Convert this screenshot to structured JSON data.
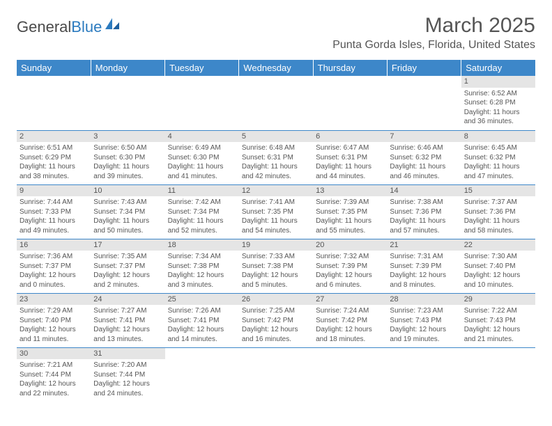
{
  "logo": {
    "text1": "General",
    "text2": "Blue"
  },
  "title": "March 2025",
  "location": "Punta Gorda Isles, Florida, United States",
  "colors": {
    "header_bg": "#3d87c9",
    "header_text": "#ffffff",
    "daynum_bg": "#e5e5e5",
    "text": "#555555",
    "row_border": "#3d87c9"
  },
  "fonts": {
    "title_size": 30,
    "location_size": 16,
    "dayhead_size": 13,
    "cell_size": 10
  },
  "day_headers": [
    "Sunday",
    "Monday",
    "Tuesday",
    "Wednesday",
    "Thursday",
    "Friday",
    "Saturday"
  ],
  "weeks": [
    [
      {
        "day": "",
        "sunrise": "",
        "sunset": "",
        "daylight1": "",
        "daylight2": ""
      },
      {
        "day": "",
        "sunrise": "",
        "sunset": "",
        "daylight1": "",
        "daylight2": ""
      },
      {
        "day": "",
        "sunrise": "",
        "sunset": "",
        "daylight1": "",
        "daylight2": ""
      },
      {
        "day": "",
        "sunrise": "",
        "sunset": "",
        "daylight1": "",
        "daylight2": ""
      },
      {
        "day": "",
        "sunrise": "",
        "sunset": "",
        "daylight1": "",
        "daylight2": ""
      },
      {
        "day": "",
        "sunrise": "",
        "sunset": "",
        "daylight1": "",
        "daylight2": ""
      },
      {
        "day": "1",
        "sunrise": "Sunrise: 6:52 AM",
        "sunset": "Sunset: 6:28 PM",
        "daylight1": "Daylight: 11 hours",
        "daylight2": "and 36 minutes."
      }
    ],
    [
      {
        "day": "2",
        "sunrise": "Sunrise: 6:51 AM",
        "sunset": "Sunset: 6:29 PM",
        "daylight1": "Daylight: 11 hours",
        "daylight2": "and 38 minutes."
      },
      {
        "day": "3",
        "sunrise": "Sunrise: 6:50 AM",
        "sunset": "Sunset: 6:30 PM",
        "daylight1": "Daylight: 11 hours",
        "daylight2": "and 39 minutes."
      },
      {
        "day": "4",
        "sunrise": "Sunrise: 6:49 AM",
        "sunset": "Sunset: 6:30 PM",
        "daylight1": "Daylight: 11 hours",
        "daylight2": "and 41 minutes."
      },
      {
        "day": "5",
        "sunrise": "Sunrise: 6:48 AM",
        "sunset": "Sunset: 6:31 PM",
        "daylight1": "Daylight: 11 hours",
        "daylight2": "and 42 minutes."
      },
      {
        "day": "6",
        "sunrise": "Sunrise: 6:47 AM",
        "sunset": "Sunset: 6:31 PM",
        "daylight1": "Daylight: 11 hours",
        "daylight2": "and 44 minutes."
      },
      {
        "day": "7",
        "sunrise": "Sunrise: 6:46 AM",
        "sunset": "Sunset: 6:32 PM",
        "daylight1": "Daylight: 11 hours",
        "daylight2": "and 46 minutes."
      },
      {
        "day": "8",
        "sunrise": "Sunrise: 6:45 AM",
        "sunset": "Sunset: 6:32 PM",
        "daylight1": "Daylight: 11 hours",
        "daylight2": "and 47 minutes."
      }
    ],
    [
      {
        "day": "9",
        "sunrise": "Sunrise: 7:44 AM",
        "sunset": "Sunset: 7:33 PM",
        "daylight1": "Daylight: 11 hours",
        "daylight2": "and 49 minutes."
      },
      {
        "day": "10",
        "sunrise": "Sunrise: 7:43 AM",
        "sunset": "Sunset: 7:34 PM",
        "daylight1": "Daylight: 11 hours",
        "daylight2": "and 50 minutes."
      },
      {
        "day": "11",
        "sunrise": "Sunrise: 7:42 AM",
        "sunset": "Sunset: 7:34 PM",
        "daylight1": "Daylight: 11 hours",
        "daylight2": "and 52 minutes."
      },
      {
        "day": "12",
        "sunrise": "Sunrise: 7:41 AM",
        "sunset": "Sunset: 7:35 PM",
        "daylight1": "Daylight: 11 hours",
        "daylight2": "and 54 minutes."
      },
      {
        "day": "13",
        "sunrise": "Sunrise: 7:39 AM",
        "sunset": "Sunset: 7:35 PM",
        "daylight1": "Daylight: 11 hours",
        "daylight2": "and 55 minutes."
      },
      {
        "day": "14",
        "sunrise": "Sunrise: 7:38 AM",
        "sunset": "Sunset: 7:36 PM",
        "daylight1": "Daylight: 11 hours",
        "daylight2": "and 57 minutes."
      },
      {
        "day": "15",
        "sunrise": "Sunrise: 7:37 AM",
        "sunset": "Sunset: 7:36 PM",
        "daylight1": "Daylight: 11 hours",
        "daylight2": "and 58 minutes."
      }
    ],
    [
      {
        "day": "16",
        "sunrise": "Sunrise: 7:36 AM",
        "sunset": "Sunset: 7:37 PM",
        "daylight1": "Daylight: 12 hours",
        "daylight2": "and 0 minutes."
      },
      {
        "day": "17",
        "sunrise": "Sunrise: 7:35 AM",
        "sunset": "Sunset: 7:37 PM",
        "daylight1": "Daylight: 12 hours",
        "daylight2": "and 2 minutes."
      },
      {
        "day": "18",
        "sunrise": "Sunrise: 7:34 AM",
        "sunset": "Sunset: 7:38 PM",
        "daylight1": "Daylight: 12 hours",
        "daylight2": "and 3 minutes."
      },
      {
        "day": "19",
        "sunrise": "Sunrise: 7:33 AM",
        "sunset": "Sunset: 7:38 PM",
        "daylight1": "Daylight: 12 hours",
        "daylight2": "and 5 minutes."
      },
      {
        "day": "20",
        "sunrise": "Sunrise: 7:32 AM",
        "sunset": "Sunset: 7:39 PM",
        "daylight1": "Daylight: 12 hours",
        "daylight2": "and 6 minutes."
      },
      {
        "day": "21",
        "sunrise": "Sunrise: 7:31 AM",
        "sunset": "Sunset: 7:39 PM",
        "daylight1": "Daylight: 12 hours",
        "daylight2": "and 8 minutes."
      },
      {
        "day": "22",
        "sunrise": "Sunrise: 7:30 AM",
        "sunset": "Sunset: 7:40 PM",
        "daylight1": "Daylight: 12 hours",
        "daylight2": "and 10 minutes."
      }
    ],
    [
      {
        "day": "23",
        "sunrise": "Sunrise: 7:29 AM",
        "sunset": "Sunset: 7:40 PM",
        "daylight1": "Daylight: 12 hours",
        "daylight2": "and 11 minutes."
      },
      {
        "day": "24",
        "sunrise": "Sunrise: 7:27 AM",
        "sunset": "Sunset: 7:41 PM",
        "daylight1": "Daylight: 12 hours",
        "daylight2": "and 13 minutes."
      },
      {
        "day": "25",
        "sunrise": "Sunrise: 7:26 AM",
        "sunset": "Sunset: 7:41 PM",
        "daylight1": "Daylight: 12 hours",
        "daylight2": "and 14 minutes."
      },
      {
        "day": "26",
        "sunrise": "Sunrise: 7:25 AM",
        "sunset": "Sunset: 7:42 PM",
        "daylight1": "Daylight: 12 hours",
        "daylight2": "and 16 minutes."
      },
      {
        "day": "27",
        "sunrise": "Sunrise: 7:24 AM",
        "sunset": "Sunset: 7:42 PM",
        "daylight1": "Daylight: 12 hours",
        "daylight2": "and 18 minutes."
      },
      {
        "day": "28",
        "sunrise": "Sunrise: 7:23 AM",
        "sunset": "Sunset: 7:43 PM",
        "daylight1": "Daylight: 12 hours",
        "daylight2": "and 19 minutes."
      },
      {
        "day": "29",
        "sunrise": "Sunrise: 7:22 AM",
        "sunset": "Sunset: 7:43 PM",
        "daylight1": "Daylight: 12 hours",
        "daylight2": "and 21 minutes."
      }
    ],
    [
      {
        "day": "30",
        "sunrise": "Sunrise: 7:21 AM",
        "sunset": "Sunset: 7:44 PM",
        "daylight1": "Daylight: 12 hours",
        "daylight2": "and 22 minutes."
      },
      {
        "day": "31",
        "sunrise": "Sunrise: 7:20 AM",
        "sunset": "Sunset: 7:44 PM",
        "daylight1": "Daylight: 12 hours",
        "daylight2": "and 24 minutes."
      },
      {
        "day": "",
        "sunrise": "",
        "sunset": "",
        "daylight1": "",
        "daylight2": ""
      },
      {
        "day": "",
        "sunrise": "",
        "sunset": "",
        "daylight1": "",
        "daylight2": ""
      },
      {
        "day": "",
        "sunrise": "",
        "sunset": "",
        "daylight1": "",
        "daylight2": ""
      },
      {
        "day": "",
        "sunrise": "",
        "sunset": "",
        "daylight1": "",
        "daylight2": ""
      },
      {
        "day": "",
        "sunrise": "",
        "sunset": "",
        "daylight1": "",
        "daylight2": ""
      }
    ]
  ]
}
